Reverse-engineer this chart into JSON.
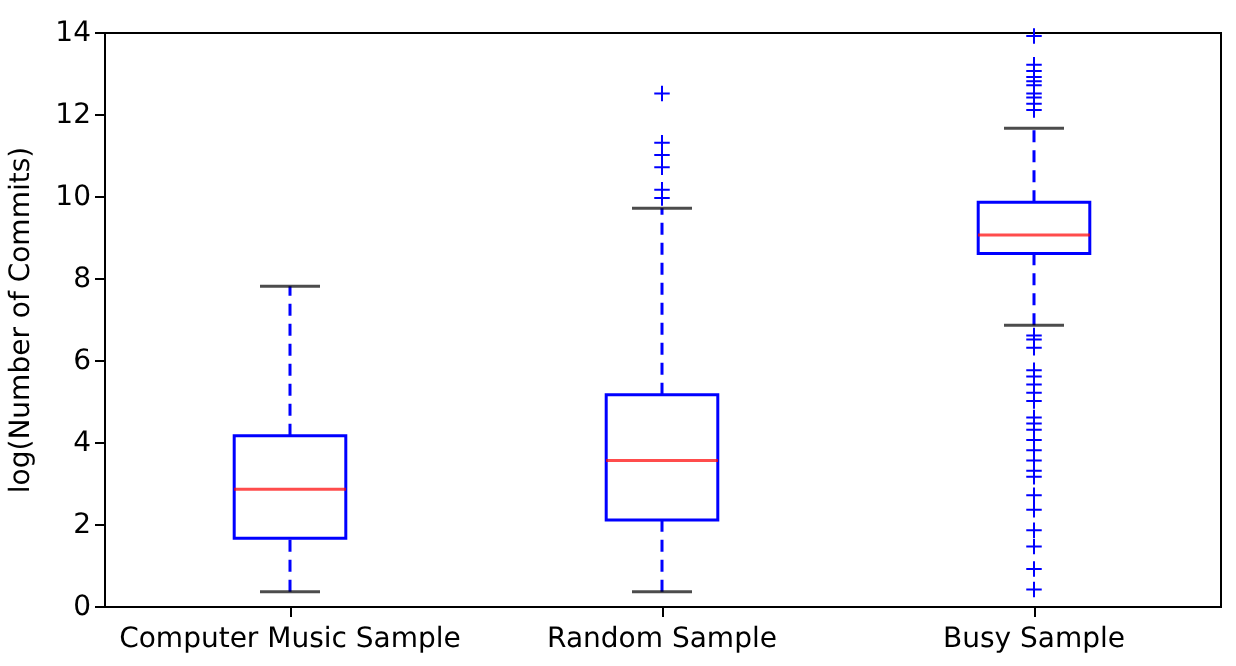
{
  "chart_data": {
    "type": "box",
    "ylabel": "log(Number of Commits)",
    "categories": [
      "Computer Music Sample",
      "Random Sample",
      "Busy Sample"
    ],
    "ylim": [
      0,
      14
    ],
    "yticks": [
      0,
      2,
      4,
      6,
      8,
      10,
      12,
      14
    ],
    "grid": false,
    "marker": "cross",
    "series": [
      {
        "color": "#0000ff",
        "boxes": [
          {
            "low": 0.35,
            "q1": 1.65,
            "median": 2.85,
            "q3": 4.15,
            "high": 7.8
          },
          {
            "low": 0.35,
            "q1": 2.1,
            "median": 3.55,
            "q3": 5.15,
            "high": 9.7,
            "outliers": [
              9.95,
              10.15,
              10.7,
              11.0,
              11.3,
              12.5
            ]
          },
          {
            "low": 6.85,
            "q1": 8.6,
            "median": 9.05,
            "q3": 9.85,
            "high": 11.65,
            "outliers": [
              13.9,
              13.2,
              13.05,
              12.9,
              12.8,
              12.7,
              12.5,
              12.4,
              12.25,
              12.1,
              6.6,
              6.5,
              6.3,
              5.75,
              5.6,
              5.4,
              5.2,
              5.0,
              4.6,
              4.45,
              4.3,
              4.05,
              3.8,
              3.55,
              3.3,
              3.15,
              2.7,
              2.35,
              1.85,
              1.45,
              0.9,
              0.4
            ]
          }
        ]
      }
    ]
  }
}
